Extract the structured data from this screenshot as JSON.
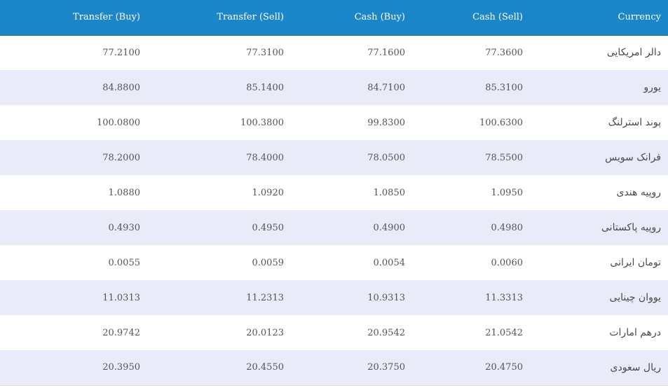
{
  "table": {
    "headers": {
      "transfer_buy": "Transfer (Buy)",
      "transfer_sell": "Transfer (Sell)",
      "cash_buy": "Cash (Buy)",
      "cash_sell": "Cash (Sell)",
      "currency": "Currency"
    },
    "rows": [
      {
        "transfer_buy": "77.2100",
        "transfer_sell": "77.3100",
        "cash_buy": "77.1600",
        "cash_sell": "77.3600",
        "currency": "دالر امریکایی"
      },
      {
        "transfer_buy": "84.8800",
        "transfer_sell": "85.1400",
        "cash_buy": "84.7100",
        "cash_sell": "85.3100",
        "currency": "یورو"
      },
      {
        "transfer_buy": "100.0800",
        "transfer_sell": "100.3800",
        "cash_buy": "99.8300",
        "cash_sell": "100.6300",
        "currency": "پوند استرلنگ"
      },
      {
        "transfer_buy": "78.2000",
        "transfer_sell": "78.4000",
        "cash_buy": "78.0500",
        "cash_sell": "78.5500",
        "currency": "فرانک سویس"
      },
      {
        "transfer_buy": "1.0880",
        "transfer_sell": "1.0920",
        "cash_buy": "1.0850",
        "cash_sell": "1.0950",
        "currency": "روپیه هندی"
      },
      {
        "transfer_buy": "0.4930",
        "transfer_sell": "0.4950",
        "cash_buy": "0.4900",
        "cash_sell": "0.4980",
        "currency": "روپیه پاکستانی"
      },
      {
        "transfer_buy": "0.0055",
        "transfer_sell": "0.0059",
        "cash_buy": "0.0054",
        "cash_sell": "0.0060",
        "currency": "تومان ایرانی"
      },
      {
        "transfer_buy": "11.0313",
        "transfer_sell": "11.2313",
        "cash_buy": "10.9313",
        "cash_sell": "11.3313",
        "currency": "یووان چینایی"
      },
      {
        "transfer_buy": "20.9742",
        "transfer_sell": "20.0123",
        "cash_buy": "20.9542",
        "cash_sell": "21.0542",
        "currency": "درهم امارات"
      },
      {
        "transfer_buy": "20.3950",
        "transfer_sell": "20.4550",
        "cash_buy": "20.3750",
        "cash_sell": "20.4750",
        "currency": "ریال سعودی"
      }
    ]
  },
  "colors": {
    "header_bg": "#1b87c9",
    "row_alt_bg": "#e9ebf9",
    "row_bg": "#ffffff"
  }
}
